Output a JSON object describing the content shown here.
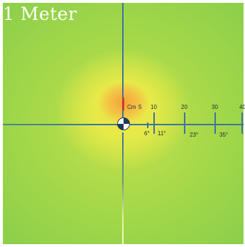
{
  "title": "1 Meter",
  "scale_unit": "Cm",
  "distances": [
    "5",
    "10",
    "20",
    "30",
    "40"
  ],
  "angles": [
    "6°",
    "11°",
    "23°",
    "35°"
  ],
  "colors": {
    "hotspot": "#f2a43a",
    "inner": "#f3e24a",
    "field": "#8fd04a",
    "axis": "#3f73a0",
    "center_marker": "#d23a2a"
  },
  "icons": [
    "crosshair-target-icon"
  ]
}
